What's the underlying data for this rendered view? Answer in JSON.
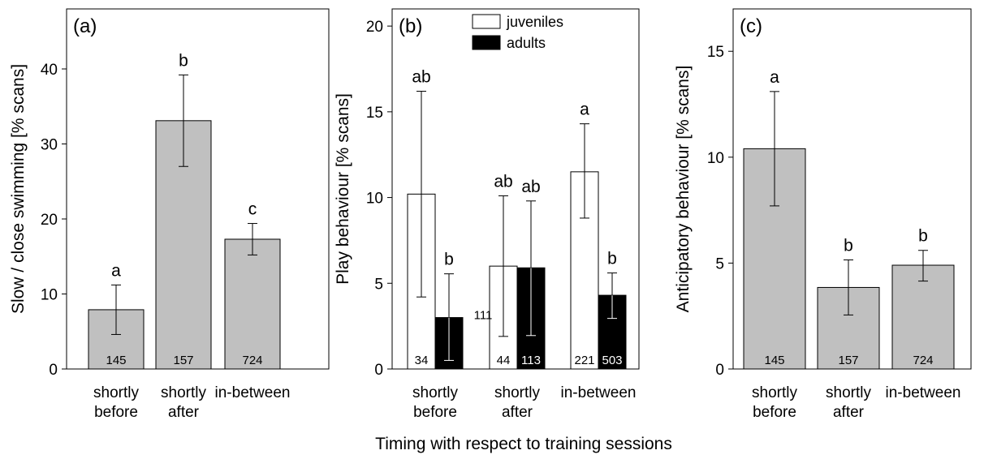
{
  "x_title": "Timing with respect to training sessions",
  "chart_data": [
    {
      "type": "bar",
      "panel_label": "(a)",
      "ylabel": "Slow / close swimming [% scans]",
      "ylim": [
        0,
        48
      ],
      "yticks": [
        0,
        10,
        20,
        30,
        40
      ],
      "categories": [
        "shortly\nbefore",
        "shortly\nafter",
        "in-between"
      ],
      "series": [
        {
          "values": [
            7.9,
            33.1,
            17.3
          ],
          "err_low": [
            4.6,
            27.0,
            15.2
          ],
          "err_high": [
            11.2,
            39.2,
            19.4
          ],
          "letters": [
            "a",
            "b",
            "c"
          ],
          "n": [
            "145",
            "157",
            "724"
          ],
          "color": "#c0c0c0"
        }
      ]
    },
    {
      "type": "bar",
      "panel_label": "(b)",
      "ylabel": "Play behaviour  [% scans]",
      "ylim": [
        0,
        21
      ],
      "yticks": [
        0,
        5,
        10,
        15,
        20
      ],
      "categories": [
        "shortly\nbefore",
        "shortly\nafter",
        "in-between"
      ],
      "legend": {
        "position": "top-right"
      },
      "series": [
        {
          "name": "juveniles",
          "values": [
            10.2,
            6.0,
            11.5
          ],
          "err_low": [
            4.2,
            1.9,
            8.8
          ],
          "err_high": [
            16.2,
            10.1,
            14.3
          ],
          "letters": [
            "ab",
            "ab",
            "a"
          ],
          "n": [
            "34",
            "44",
            "221"
          ],
          "color": "#ffffff"
        },
        {
          "name": "adults",
          "values": [
            3.0,
            5.9,
            4.3
          ],
          "err_low": [
            0.5,
            1.95,
            2.95
          ],
          "err_high": [
            5.55,
            9.8,
            5.6
          ],
          "letters": [
            "b",
            "ab",
            "b"
          ],
          "n": [
            "111",
            "113",
            "503"
          ],
          "color": "#000000"
        }
      ]
    },
    {
      "type": "bar",
      "panel_label": "(c)",
      "ylabel": "Anticipatory behaviour [% scans]",
      "ylim": [
        0,
        17
      ],
      "yticks": [
        0,
        5,
        10,
        15
      ],
      "categories": [
        "shortly\nbefore",
        "shortly\nafter",
        "in-between"
      ],
      "series": [
        {
          "values": [
            10.4,
            3.85,
            4.9
          ],
          "err_low": [
            7.7,
            2.55,
            4.15
          ],
          "err_high": [
            13.1,
            5.15,
            5.6
          ],
          "letters": [
            "a",
            "b",
            "b"
          ],
          "n": [
            "145",
            "157",
            "724"
          ],
          "color": "#c0c0c0"
        }
      ]
    }
  ]
}
